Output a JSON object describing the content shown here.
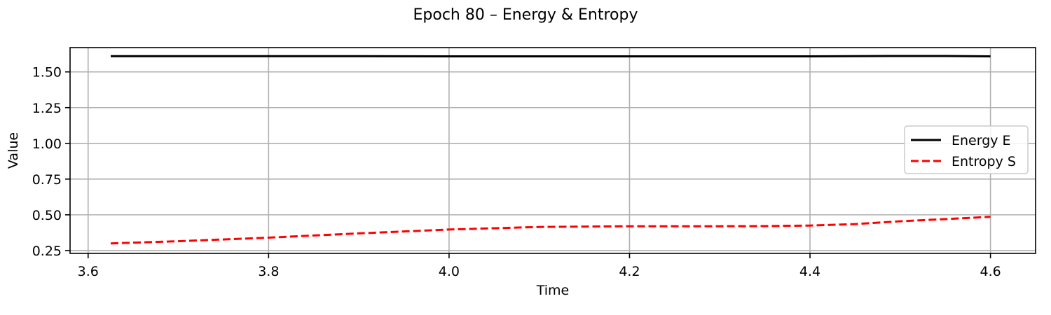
{
  "chart_data": {
    "type": "line",
    "title": "Epoch 80 – Energy & Entropy",
    "xlabel": "Time",
    "ylabel": "Value",
    "xlim": [
      3.58,
      4.65
    ],
    "ylim": [
      0.23,
      1.67
    ],
    "xticks": [
      3.6,
      3.8,
      4.0,
      4.2,
      4.4,
      4.6
    ],
    "xtick_labels": [
      "3.6",
      "3.8",
      "4.0",
      "4.2",
      "4.4",
      "4.6"
    ],
    "yticks": [
      0.25,
      0.5,
      0.75,
      1.0,
      1.25,
      1.5
    ],
    "ytick_labels": [
      "0.25",
      "0.50",
      "0.75",
      "1.00",
      "1.25",
      "1.50"
    ],
    "grid": true,
    "legend_position": "center-right",
    "series": [
      {
        "name": "Energy E",
        "color": "#000000",
        "style": "solid",
        "x": [
          3.625,
          3.7,
          3.8,
          3.9,
          4.0,
          4.1,
          4.2,
          4.3,
          4.4,
          4.5,
          4.55,
          4.6
        ],
        "y": [
          1.61,
          1.61,
          1.61,
          1.61,
          1.609,
          1.609,
          1.609,
          1.609,
          1.609,
          1.611,
          1.611,
          1.609
        ]
      },
      {
        "name": "Entropy S",
        "color": "#ff0000",
        "style": "dashed",
        "x": [
          3.625,
          3.7,
          3.8,
          3.9,
          4.0,
          4.1,
          4.2,
          4.3,
          4.35,
          4.4,
          4.45,
          4.5,
          4.55,
          4.6
        ],
        "y": [
          0.3,
          0.315,
          0.34,
          0.37,
          0.397,
          0.415,
          0.42,
          0.42,
          0.421,
          0.425,
          0.435,
          0.455,
          0.47,
          0.486
        ]
      }
    ]
  }
}
